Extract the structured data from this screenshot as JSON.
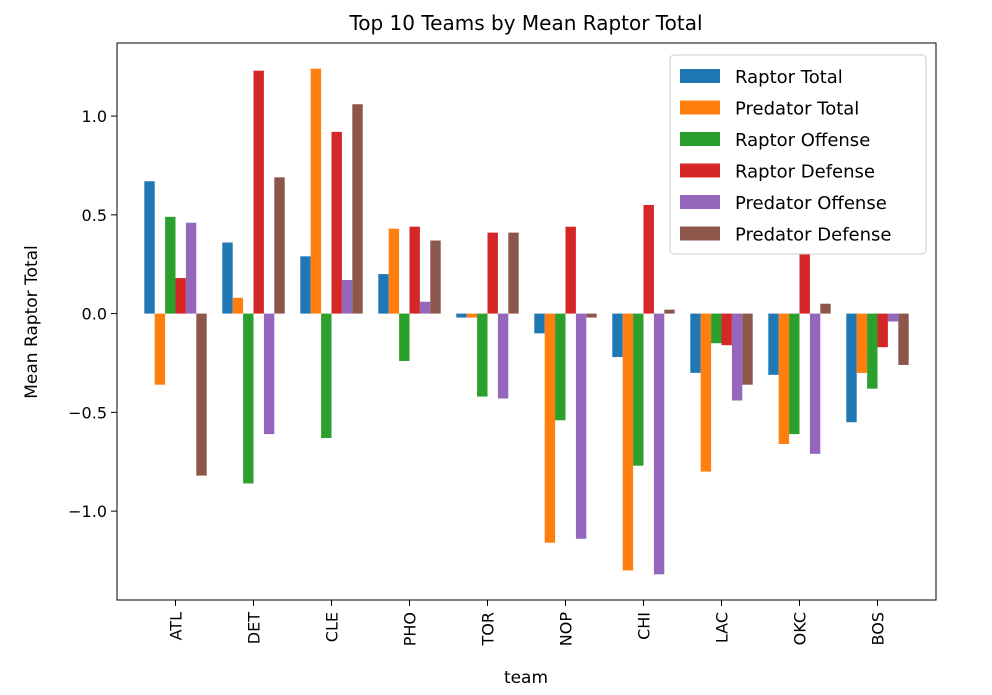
{
  "chart_data": {
    "type": "bar",
    "title": "Top 10 Teams by Mean Raptor Total",
    "xlabel": "team",
    "ylabel": "Mean Raptor Total",
    "ylim": [
      -1.45,
      1.37
    ],
    "yticks": [
      "1.0",
      "0.5",
      "0.0",
      "−0.5",
      "−1.0"
    ],
    "ytick_values": [
      1.0,
      0.5,
      0.0,
      -0.5,
      -1.0
    ],
    "grid": false,
    "legend_position": "top-right",
    "categories": [
      "ATL",
      "DET",
      "CLE",
      "PHO",
      "TOR",
      "NOP",
      "CHI",
      "LAC",
      "OKC",
      "BOS"
    ],
    "series": [
      {
        "name": "Raptor Total",
        "color": "#1f77b4",
        "values": [
          0.67,
          0.36,
          0.29,
          0.2,
          -0.02,
          -0.1,
          -0.22,
          -0.3,
          -0.31,
          -0.55
        ]
      },
      {
        "name": "Predator Total",
        "color": "#ff7f0e",
        "values": [
          -0.36,
          0.08,
          1.24,
          0.43,
          -0.02,
          -1.16,
          -1.3,
          -0.8,
          -0.66,
          -0.3
        ]
      },
      {
        "name": "Raptor Offense",
        "color": "#2ca02c",
        "values": [
          0.49,
          -0.86,
          -0.63,
          -0.24,
          -0.42,
          -0.54,
          -0.77,
          -0.15,
          -0.61,
          -0.38
        ]
      },
      {
        "name": "Raptor Defense",
        "color": "#d62728",
        "values": [
          0.18,
          1.23,
          0.92,
          0.44,
          0.41,
          0.44,
          0.55,
          -0.16,
          0.3,
          -0.17
        ]
      },
      {
        "name": "Predator Offense",
        "color": "#9467bd",
        "values": [
          0.46,
          -0.61,
          0.17,
          0.06,
          -0.43,
          -1.14,
          -1.32,
          -0.44,
          -0.71,
          -0.04
        ]
      },
      {
        "name": "Predator Defense",
        "color": "#8c564b",
        "values": [
          -0.82,
          0.69,
          1.06,
          0.37,
          0.41,
          -0.02,
          0.02,
          -0.36,
          0.05,
          -0.26
        ]
      }
    ]
  }
}
